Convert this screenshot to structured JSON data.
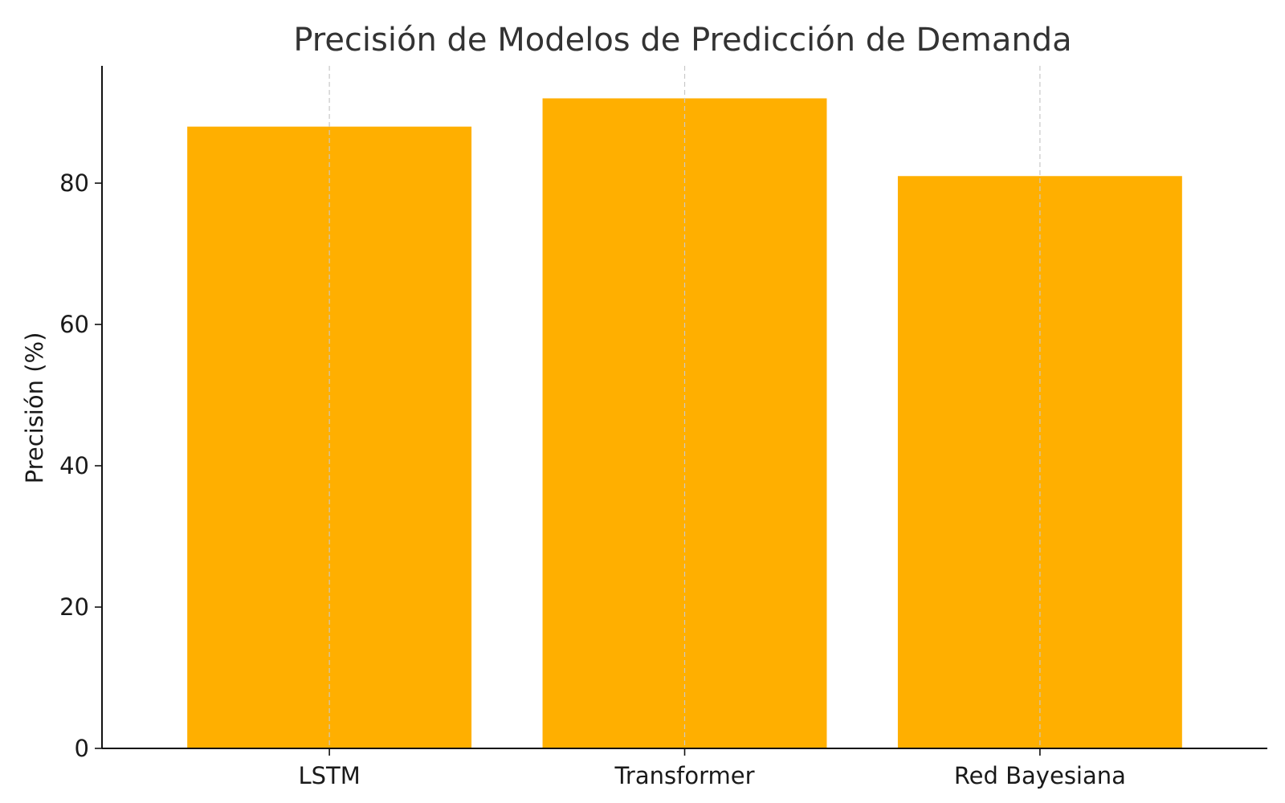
{
  "chart_data": {
    "type": "bar",
    "title": "Precisión de Modelos de Predicción de Demanda",
    "xlabel": "",
    "ylabel": "Precisión (%)",
    "categories": [
      "LSTM",
      "Transformer",
      "Red Bayesiana"
    ],
    "values": [
      88,
      92,
      81
    ],
    "ylim": [
      0,
      96.6
    ],
    "yticks": [
      0,
      20,
      40,
      60,
      80
    ],
    "grid": "vertical-x-only",
    "bar_color": "#FFAF00"
  }
}
